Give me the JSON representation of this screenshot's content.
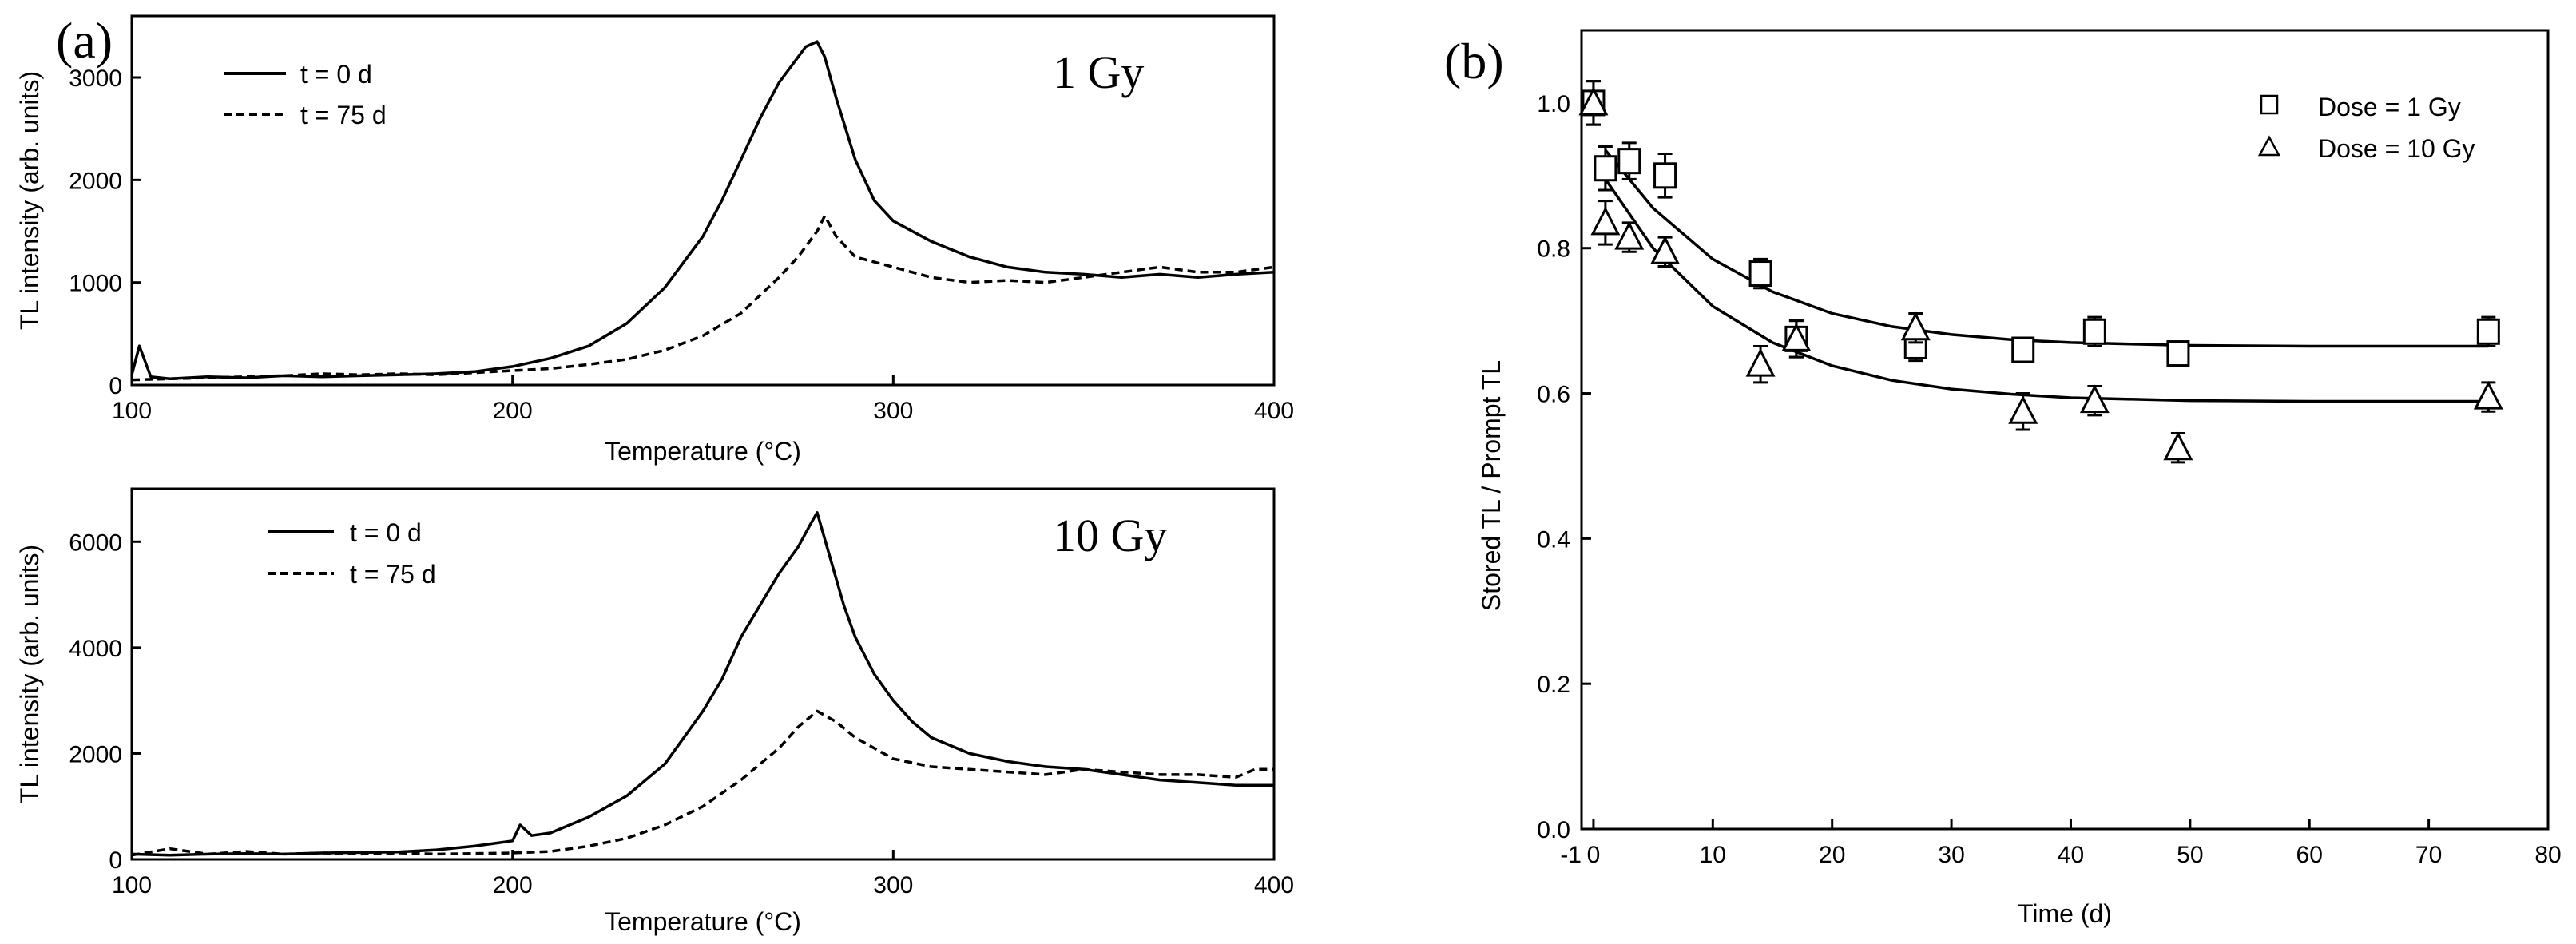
{
  "chart_data": [
    {
      "type": "line",
      "panel_label": "(a)",
      "annotation": "1 Gy",
      "xlabel": "Temperature (°C)",
      "ylabel": "TL intensity (arb. units)",
      "xlim": [
        100,
        400
      ],
      "ylim": [
        0,
        3600
      ],
      "xticks": [
        "100",
        "200",
        "300",
        "400"
      ],
      "yticks": [
        "0",
        "1000",
        "2000",
        "3000"
      ],
      "series": [
        {
          "name": "t = 0 d",
          "style": "solid",
          "x": [
            100,
            102,
            105,
            110,
            120,
            130,
            140,
            150,
            160,
            170,
            180,
            190,
            200,
            210,
            220,
            230,
            240,
            250,
            255,
            260,
            265,
            270,
            274,
            277,
            280,
            282,
            285,
            290,
            295,
            300,
            310,
            320,
            330,
            340,
            350,
            360,
            370,
            380,
            390,
            400
          ],
          "y": [
            100,
            380,
            80,
            60,
            80,
            70,
            90,
            80,
            90,
            100,
            110,
            130,
            180,
            260,
            380,
            600,
            950,
            1450,
            1800,
            2200,
            2600,
            2950,
            3150,
            3300,
            3350,
            3200,
            2800,
            2200,
            1800,
            1600,
            1400,
            1250,
            1150,
            1100,
            1080,
            1050,
            1080,
            1050,
            1080,
            1100
          ]
        },
        {
          "name": "t = 75 d",
          "style": "dashed",
          "x": [
            100,
            110,
            120,
            130,
            140,
            150,
            160,
            170,
            180,
            190,
            200,
            210,
            220,
            230,
            240,
            250,
            260,
            270,
            275,
            280,
            282,
            285,
            290,
            300,
            310,
            320,
            330,
            340,
            350,
            360,
            370,
            380,
            390,
            400
          ],
          "y": [
            50,
            60,
            70,
            80,
            90,
            110,
            100,
            110,
            100,
            120,
            140,
            160,
            200,
            250,
            340,
            480,
            700,
            1050,
            1250,
            1500,
            1650,
            1450,
            1250,
            1150,
            1050,
            1000,
            1020,
            1000,
            1050,
            1100,
            1150,
            1100,
            1100,
            1150
          ]
        }
      ]
    },
    {
      "type": "line",
      "annotation": "10 Gy",
      "xlabel": "Temperature (°C)",
      "ylabel": "TL intensity (arb. units)",
      "xlim": [
        100,
        400
      ],
      "ylim": [
        0,
        7000
      ],
      "xticks": [
        "100",
        "200",
        "300",
        "400"
      ],
      "yticks": [
        "0",
        "2000",
        "4000",
        "6000"
      ],
      "series": [
        {
          "name": "t = 0 d",
          "style": "solid",
          "x": [
            100,
            110,
            120,
            130,
            140,
            150,
            160,
            170,
            180,
            190,
            195,
            200,
            202,
            205,
            210,
            220,
            230,
            240,
            250,
            255,
            260,
            265,
            270,
            275,
            278,
            280,
            283,
            287,
            290,
            295,
            300,
            305,
            310,
            320,
            330,
            340,
            350,
            360,
            370,
            380,
            390,
            400
          ],
          "y": [
            100,
            80,
            100,
            110,
            100,
            120,
            130,
            140,
            180,
            250,
            300,
            350,
            650,
            450,
            500,
            800,
            1200,
            1800,
            2800,
            3400,
            4200,
            4800,
            5400,
            5900,
            6300,
            6550,
            5800,
            4800,
            4200,
            3500,
            3000,
            2600,
            2300,
            2000,
            1850,
            1750,
            1700,
            1600,
            1500,
            1450,
            1400,
            1400
          ]
        },
        {
          "name": "t = 75 d",
          "style": "dashed",
          "x": [
            100,
            110,
            120,
            130,
            140,
            150,
            160,
            170,
            180,
            190,
            200,
            210,
            220,
            230,
            240,
            250,
            260,
            270,
            275,
            280,
            285,
            290,
            300,
            310,
            320,
            330,
            340,
            350,
            360,
            370,
            380,
            390,
            395,
            400
          ],
          "y": [
            80,
            200,
            100,
            150,
            100,
            120,
            100,
            120,
            100,
            110,
            120,
            150,
            250,
            400,
            650,
            1000,
            1500,
            2100,
            2500,
            2800,
            2600,
            2300,
            1900,
            1750,
            1700,
            1650,
            1600,
            1700,
            1650,
            1600,
            1600,
            1550,
            1700,
            1700
          ]
        }
      ]
    },
    {
      "type": "scatter",
      "panel_label": "(b)",
      "xlabel": "Time (d)",
      "ylabel": "Stored TL / Prompt TL",
      "xlim": [
        -1,
        80
      ],
      "ylim": [
        0.0,
        1.1
      ],
      "xticks": [
        "-1",
        "0",
        "10",
        "20",
        "30",
        "40",
        "50",
        "60",
        "70",
        "80"
      ],
      "yticks": [
        "0.0",
        "0.2",
        "0.4",
        "0.6",
        "0.8",
        "1.0"
      ],
      "series": [
        {
          "name": "Dose = 1 Gy",
          "marker": "square",
          "x": [
            0,
            1,
            3,
            6,
            14,
            17,
            27,
            36,
            42,
            49,
            75
          ],
          "y": [
            1.0,
            0.91,
            0.92,
            0.9,
            0.765,
            0.675,
            0.665,
            0.66,
            0.685,
            0.655,
            0.685
          ],
          "err": [
            0.03,
            0.03,
            0.025,
            0.03,
            0.02,
            0.025,
            0.02,
            0.015,
            0.02,
            0.015,
            0.02
          ],
          "fit_x": [
            1,
            5,
            10,
            15,
            20,
            25,
            30,
            35,
            40,
            50,
            60,
            70,
            75
          ],
          "fit_y": [
            0.935,
            0.855,
            0.785,
            0.74,
            0.71,
            0.692,
            0.681,
            0.674,
            0.67,
            0.666,
            0.665,
            0.665,
            0.665
          ]
        },
        {
          "name": "Dose = 10 Gy",
          "marker": "triangle",
          "x": [
            0,
            1,
            3,
            6,
            14,
            17,
            27,
            36,
            42,
            49,
            75
          ],
          "y": [
            1.0,
            0.835,
            0.815,
            0.795,
            0.64,
            0.675,
            0.69,
            0.575,
            0.59,
            0.525,
            0.595
          ],
          "err": [
            0.03,
            0.03,
            0.02,
            0.02,
            0.025,
            0.025,
            0.02,
            0.025,
            0.02,
            0.02,
            0.02
          ],
          "fit_x": [
            1,
            5,
            10,
            15,
            20,
            25,
            30,
            35,
            40,
            50,
            60,
            70,
            75
          ],
          "fit_y": [
            0.895,
            0.8,
            0.72,
            0.67,
            0.638,
            0.618,
            0.606,
            0.599,
            0.594,
            0.59,
            0.589,
            0.589,
            0.589
          ]
        }
      ]
    }
  ]
}
